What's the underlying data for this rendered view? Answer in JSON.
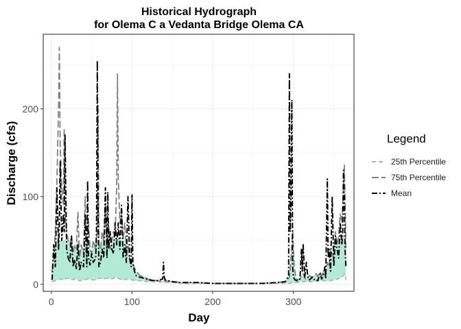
{
  "chart_data": {
    "type": "line",
    "title_line1": "Historical Hydrograph",
    "title_line2": "for Olema C a Vedanta Bridge Olema CA",
    "xlabel": "Day",
    "ylabel": "Discharge (cfs)",
    "xlim": [
      -10,
      375
    ],
    "ylim": [
      -8,
      285
    ],
    "x_ticks": [
      0,
      100,
      200,
      300
    ],
    "y_ticks": [
      0,
      100,
      200
    ],
    "grid": true,
    "legend_position": "right",
    "legend": {
      "title": "Legend",
      "items": [
        {
          "label": "25th Percentile",
          "color": "#b3b3b3",
          "dash": "6,4"
        },
        {
          "label": "75th Percentile",
          "color": "#808080",
          "dash": "10,4"
        },
        {
          "label": "Mean",
          "color": "#000000",
          "dash": "8,3,2,3"
        }
      ]
    },
    "ribbon_color": "#b2ead6",
    "series": [
      {
        "key": "p25",
        "x": [
          1,
          5,
          10,
          15,
          20,
          25,
          30,
          35,
          40,
          45,
          50,
          55,
          60,
          65,
          70,
          75,
          80,
          85,
          90,
          95,
          100,
          105,
          110,
          120,
          130,
          140,
          150,
          160,
          180,
          200,
          220,
          240,
          260,
          280,
          290,
          295,
          300,
          305,
          310,
          315,
          320,
          325,
          330,
          335,
          340,
          345,
          350,
          355,
          360,
          362,
          364,
          365
        ],
        "values": [
          3,
          4,
          6,
          5,
          7,
          5,
          6,
          4,
          5,
          6,
          5,
          5,
          7,
          6,
          7,
          6,
          8,
          6,
          5,
          6,
          5,
          4,
          4,
          3,
          3,
          2,
          2,
          1,
          1,
          1,
          1,
          1,
          1,
          1,
          1,
          1,
          2,
          2,
          3,
          3,
          3,
          3,
          4,
          4,
          4,
          4,
          5,
          6,
          8,
          10,
          12,
          5
        ]
      },
      {
        "key": "p75",
        "x": [
          1,
          3,
          5,
          7,
          9,
          10,
          11,
          13,
          15,
          16,
          17,
          19,
          21,
          23,
          25,
          27,
          29,
          31,
          33,
          35,
          37,
          40,
          42,
          44,
          46,
          48,
          50,
          52,
          55,
          57,
          58,
          59,
          61,
          63,
          65,
          67,
          69,
          71,
          73,
          75,
          77,
          79,
          81,
          82,
          83,
          85,
          87,
          89,
          91,
          93,
          95,
          97,
          100,
          105,
          110,
          115,
          120,
          130,
          140,
          150,
          160,
          180,
          200,
          220,
          240,
          260,
          280,
          290,
          295,
          297,
          299,
          301,
          303,
          305,
          308,
          310,
          312,
          315,
          318,
          320,
          323,
          325,
          328,
          330,
          333,
          335,
          338,
          340,
          342,
          344,
          346,
          348,
          350,
          352,
          354,
          356,
          358,
          360,
          361,
          362,
          363,
          364,
          365
        ],
        "values": [
          15,
          30,
          60,
          120,
          200,
          270,
          160,
          110,
          90,
          178,
          80,
          60,
          50,
          45,
          55,
          35,
          45,
          40,
          82,
          30,
          45,
          35,
          100,
          30,
          70,
          40,
          35,
          50,
          40,
          60,
          205,
          45,
          40,
          60,
          50,
          90,
          35,
          70,
          40,
          50,
          60,
          55,
          110,
          240,
          120,
          70,
          80,
          50,
          70,
          40,
          45,
          30,
          25,
          15,
          10,
          8,
          6,
          4,
          4,
          3,
          2,
          2,
          1,
          1,
          1,
          1,
          2,
          3,
          8,
          30,
          60,
          20,
          8,
          5,
          6,
          10,
          12,
          6,
          8,
          10,
          8,
          10,
          12,
          9,
          14,
          10,
          15,
          12,
          25,
          20,
          40,
          35,
          30,
          60,
          45,
          55,
          80,
          70,
          90,
          110,
          136,
          100,
          40
        ]
      },
      {
        "key": "mean",
        "x": [
          1,
          3,
          5,
          7,
          9,
          10,
          11,
          13,
          15,
          16,
          17,
          19,
          21,
          23,
          25,
          27,
          29,
          31,
          33,
          35,
          37,
          40,
          42,
          44,
          45,
          46,
          48,
          50,
          52,
          55,
          56,
          57,
          58,
          59,
          61,
          63,
          65,
          67,
          69,
          70,
          71,
          73,
          75,
          77,
          79,
          81,
          83,
          85,
          87,
          89,
          91,
          93,
          95,
          97,
          99,
          100,
          101,
          103,
          105,
          110,
          115,
          120,
          130,
          138,
          139,
          140,
          141,
          145,
          150,
          160,
          180,
          200,
          220,
          240,
          260,
          280,
          290,
          294,
          295,
          296,
          297,
          298,
          299,
          300,
          302,
          305,
          308,
          310,
          311,
          312,
          314,
          316,
          318,
          320,
          323,
          325,
          327,
          330,
          333,
          335,
          337,
          339,
          340,
          342,
          343,
          344,
          346,
          348,
          350,
          352,
          354,
          356,
          358,
          360,
          361,
          362,
          363,
          364,
          365
        ],
        "values": [
          5,
          45,
          20,
          110,
          40,
          70,
          140,
          50,
          80,
          60,
          170,
          40,
          30,
          25,
          55,
          20,
          28,
          18,
          45,
          15,
          25,
          20,
          80,
          20,
          118,
          30,
          22,
          35,
          25,
          30,
          60,
          255,
          80,
          20,
          25,
          40,
          30,
          110,
          30,
          105,
          40,
          60,
          40,
          35,
          70,
          45,
          70,
          40,
          90,
          30,
          45,
          25,
          100,
          30,
          20,
          102,
          25,
          15,
          10,
          8,
          7,
          5,
          4,
          6,
          25,
          8,
          5,
          4,
          3,
          2,
          2,
          1,
          1,
          1,
          1,
          2,
          3,
          10,
          240,
          60,
          100,
          210,
          20,
          8,
          5,
          4,
          6,
          40,
          15,
          46,
          8,
          25,
          6,
          5,
          8,
          5,
          6,
          4,
          12,
          6,
          10,
          20,
          6,
          120,
          30,
          40,
          15,
          100,
          20,
          55,
          40,
          30,
          70,
          45,
          60,
          130,
          100,
          40,
          20
        ]
      }
    ]
  }
}
